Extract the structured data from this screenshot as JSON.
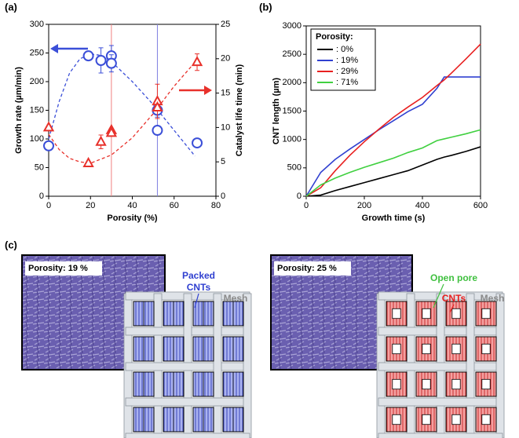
{
  "chart_data": [
    {
      "type": "scatter",
      "label": "(a)",
      "xlabel": "Porosity (%)",
      "ylabel": "Growth rate (µm/min)",
      "y2label": "Catalyst life time (min)",
      "xlim": [
        0,
        80
      ],
      "xticks": [
        0,
        20,
        40,
        60,
        80
      ],
      "ylim": [
        0,
        300
      ],
      "yticks": [
        0,
        50,
        100,
        150,
        200,
        250,
        300
      ],
      "y2lim": [
        0,
        25
      ],
      "y2ticks": [
        0,
        5,
        10,
        15,
        20,
        25
      ],
      "series": [
        {
          "color": "#3b4fd8",
          "marker": "circle",
          "x": [
            0,
            19,
            25,
            30,
            30,
            52,
            52,
            71
          ],
          "values": [
            88,
            245,
            237,
            245,
            232,
            150,
            115,
            93
          ],
          "errors": [
            null,
            8,
            22,
            18,
            15,
            12,
            null,
            null
          ]
        },
        {
          "color": "#e8312b",
          "marker": "triangle",
          "axis": "y2",
          "x": [
            0,
            19,
            25,
            30,
            30,
            52,
            52,
            71
          ],
          "values": [
            10,
            4.8,
            7.9,
            9.6,
            9.2,
            13.8,
            12.9,
            19.5
          ],
          "errors": [
            null,
            null,
            1,
            null,
            null,
            2.5,
            null,
            1.2
          ]
        }
      ],
      "curves": [
        {
          "color": "#3b4fd8",
          "x": [
            0,
            5,
            10,
            15,
            20,
            25,
            30,
            40,
            50,
            60,
            70
          ],
          "values": [
            100,
            165,
            215,
            240,
            248,
            246,
            235,
            200,
            160,
            115,
            70
          ]
        },
        {
          "color": "#e8312b",
          "axis": "y2",
          "x": [
            0,
            5,
            10,
            15,
            20,
            30,
            40,
            50,
            60,
            70
          ],
          "values": [
            9,
            6.8,
            5.5,
            5,
            4.8,
            6,
            8.5,
            12,
            16,
            19.5
          ]
        }
      ],
      "vlines": [
        {
          "x": 30,
          "color": "#f08080"
        },
        {
          "x": 52,
          "color": "#8080e0"
        }
      ]
    },
    {
      "type": "line",
      "label": "(b)",
      "xlabel": "Growth time (s)",
      "ylabel": "CNT length (µm)",
      "xlim": [
        0,
        600
      ],
      "xticks": [
        0,
        200,
        400,
        600
      ],
      "ylim": [
        0,
        3000
      ],
      "yticks": [
        0,
        500,
        1000,
        1500,
        2000,
        2500,
        3000
      ],
      "legend_title": "Porosity:",
      "legend": "top-left",
      "x": [
        0,
        50,
        100,
        150,
        200,
        250,
        300,
        350,
        400,
        450,
        475,
        500,
        550,
        600
      ],
      "series": [
        {
          "name": ": 0%",
          "color": "#000000",
          "values": [
            0,
            20,
            100,
            170,
            240,
            310,
            380,
            450,
            550,
            650,
            690,
            720,
            790,
            870
          ]
        },
        {
          "name": ": 19%",
          "color": "#3040d0",
          "values": [
            0,
            420,
            650,
            830,
            1000,
            1170,
            1330,
            1490,
            1620,
            1900,
            2100,
            2100,
            2100,
            2100
          ]
        },
        {
          "name": ": 29%",
          "color": "#e82020",
          "values": [
            0,
            150,
            450,
            720,
            960,
            1180,
            1390,
            1570,
            1740,
            1950,
            2050,
            2170,
            2420,
            2680
          ]
        },
        {
          "name": ": 71%",
          "color": "#40d040",
          "values": [
            0,
            200,
            320,
            420,
            510,
            590,
            670,
            770,
            850,
            980,
            1010,
            1040,
            1100,
            1170
          ]
        }
      ]
    }
  ],
  "panel_c": {
    "label": "(c)",
    "left": {
      "porosity": "Porosity: 19 %",
      "packed": "Packed",
      "cnts": "CNTs",
      "mesh": "Mesh"
    },
    "right": {
      "porosity": "Porosity: 25 %",
      "open_pore": "Open pore",
      "cnts": "CNTs",
      "mesh": "Mesh"
    }
  }
}
